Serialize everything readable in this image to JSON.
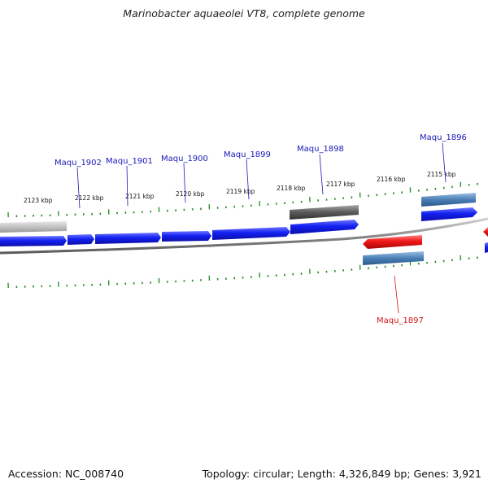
{
  "title": "Marinobacter aquaeolei VT8, complete genome",
  "footer": {
    "accession": "Accession: NC_008740",
    "summary": "Topology: circular; Length: 4,326,849 bp; Genes: 3,921"
  },
  "colors": {
    "forward_gene": "#0a14e0",
    "reverse_gene": "#e8141a",
    "rna_gene": "#4a7fb5",
    "pseudo_gene": "#5a5a5a",
    "faded_gene": "#bdbdbd",
    "tick": "#1e8a1e",
    "backbone": "#8a8a8a",
    "label_blue": "#1818b8",
    "label_red": "#d01818"
  },
  "kbp_ticks": [
    "2123 kbp",
    "2122 kbp",
    "2121 kbp",
    "2120 kbp",
    "2119 kbp",
    "2118 kbp",
    "2117 kbp",
    "2116 kbp",
    "2115 kbp"
  ],
  "gene_labels": [
    {
      "name": "Maqu_1902",
      "strand": "forward"
    },
    {
      "name": "Maqu_1901",
      "strand": "forward"
    },
    {
      "name": "Maqu_1900",
      "strand": "forward"
    },
    {
      "name": "Maqu_1899",
      "strand": "forward"
    },
    {
      "name": "Maqu_1898",
      "strand": "forward"
    },
    {
      "name": "Maqu_1896",
      "strand": "forward"
    },
    {
      "name": "Maqu_1897",
      "strand": "reverse"
    }
  ]
}
